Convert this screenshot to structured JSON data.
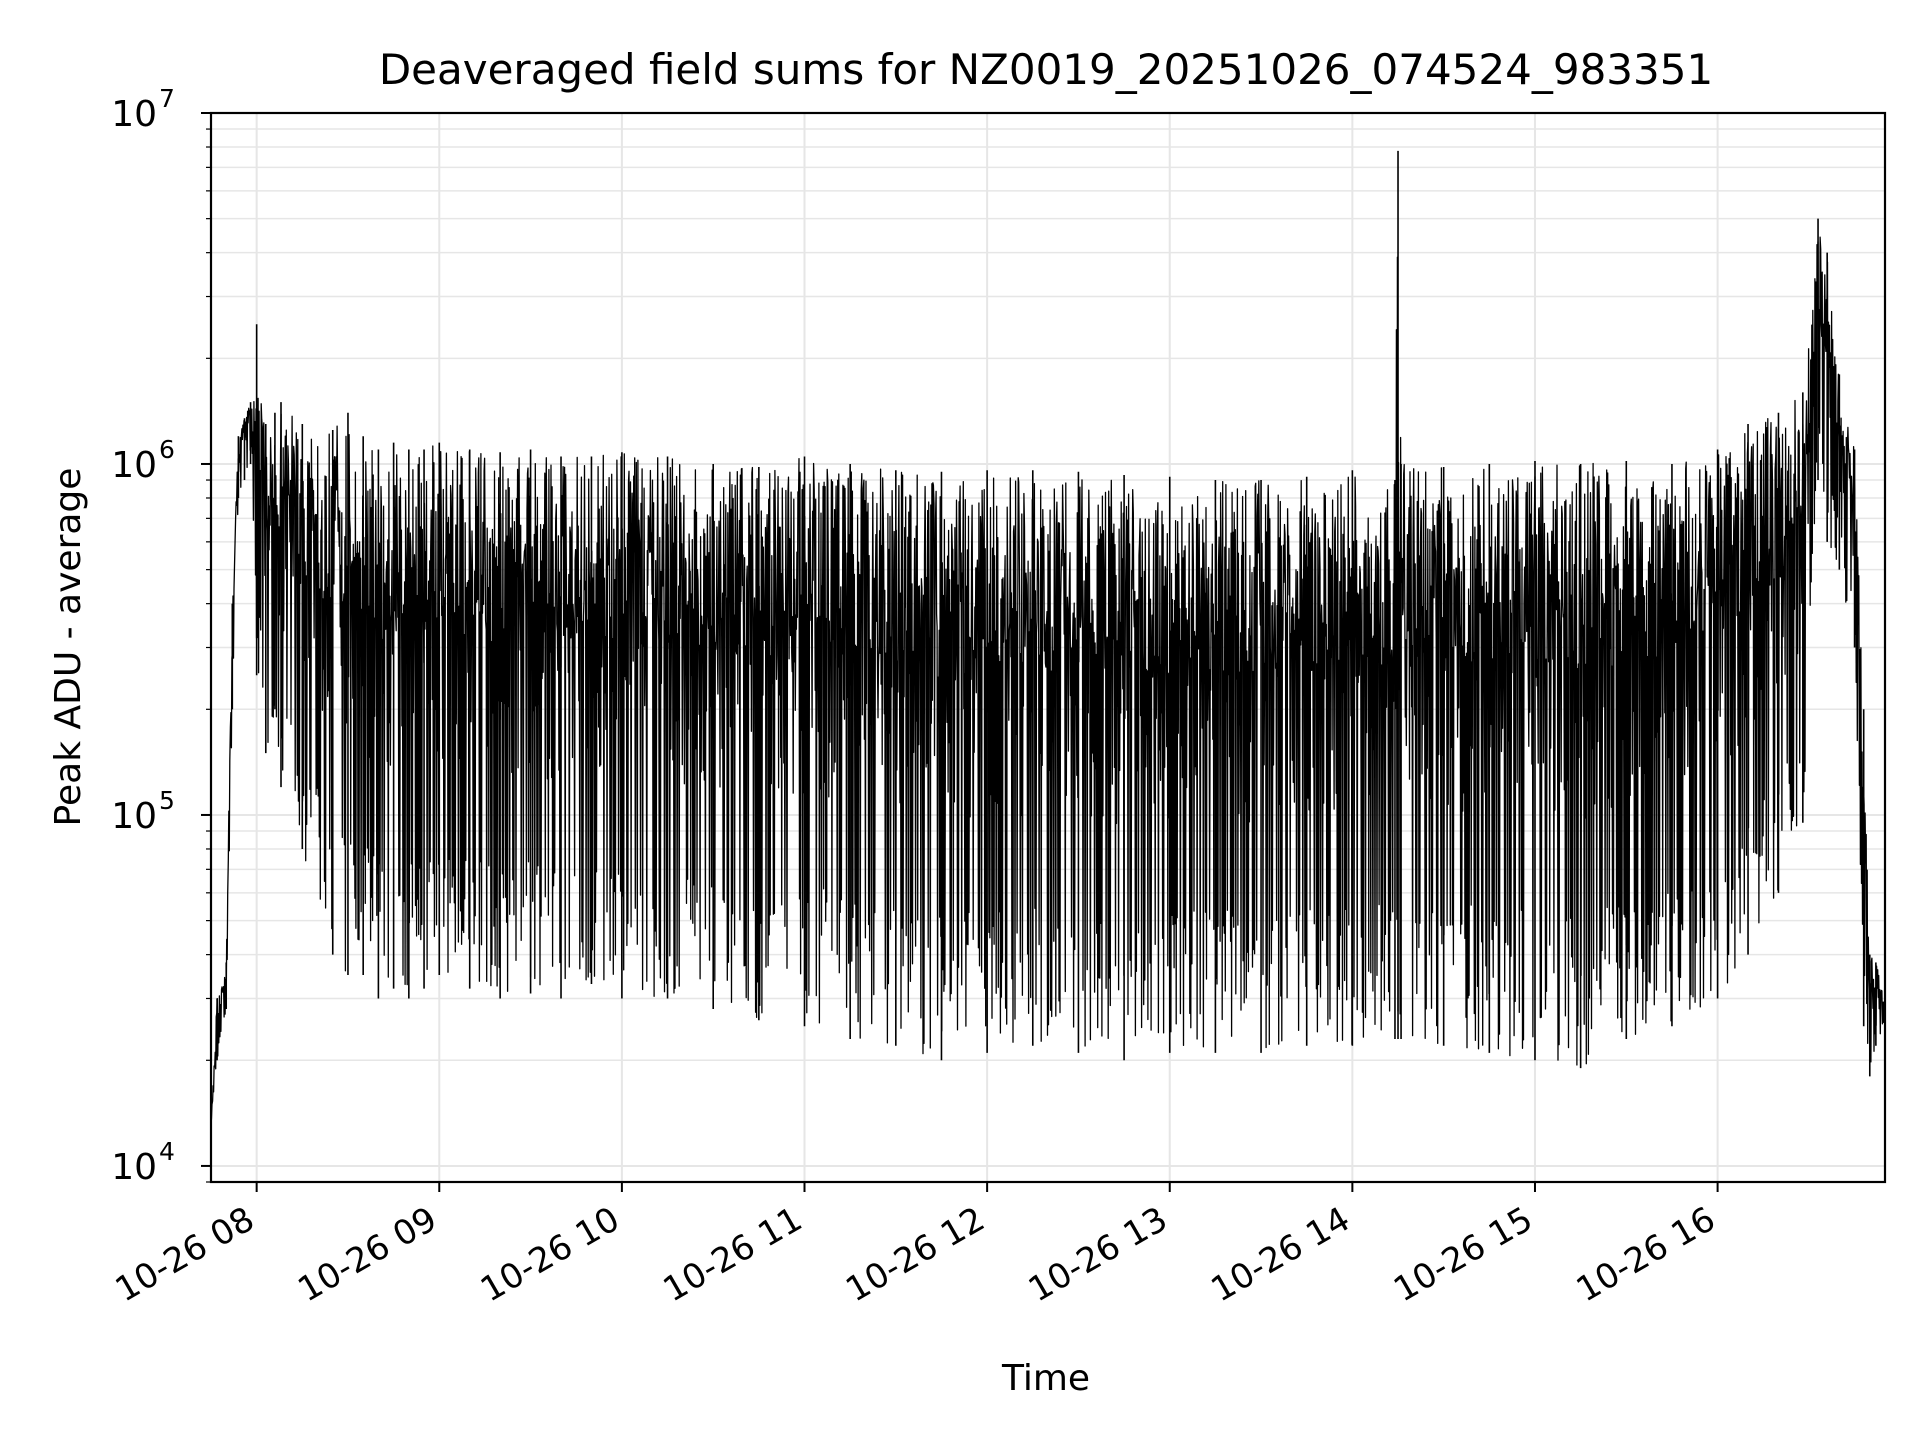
{
  "chart_data": {
    "type": "line",
    "title": "Deaveraged field sums for NZ0019_20251026_074524_983351",
    "xlabel": "Time",
    "ylabel": "Peak ADU - average",
    "yscale": "log",
    "ylim": [
      9000,
      10000000
    ],
    "xlim": [
      "2025-10-26 07:45",
      "2025-10-26 16:55"
    ],
    "grid": true,
    "line_color": "#000000",
    "grid_color": "#e6e6e6",
    "x_ticks": [
      {
        "time": "2025-10-26 08:00",
        "label": "10-26 08"
      },
      {
        "time": "2025-10-26 09:00",
        "label": "10-26 09"
      },
      {
        "time": "2025-10-26 10:00",
        "label": "10-26 10"
      },
      {
        "time": "2025-10-26 11:00",
        "label": "10-26 11"
      },
      {
        "time": "2025-10-26 12:00",
        "label": "10-26 12"
      },
      {
        "time": "2025-10-26 13:00",
        "label": "10-26 13"
      },
      {
        "time": "2025-10-26 14:00",
        "label": "10-26 14"
      },
      {
        "time": "2025-10-26 15:00",
        "label": "10-26 15"
      },
      {
        "time": "2025-10-26 16:00",
        "label": "10-26 16"
      }
    ],
    "y_ticks": [
      {
        "value": 10000,
        "base": "10",
        "exp": "4"
      },
      {
        "value": 100000,
        "base": "10",
        "exp": "5"
      },
      {
        "value": 1000000,
        "base": "10",
        "exp": "6"
      },
      {
        "value": 10000000,
        "base": "10",
        "exp": "7"
      }
    ],
    "series": [
      {
        "x": [
          "2025-10-26 07:45",
          "2025-10-26 07:47",
          "2025-10-26 07:50",
          "2025-10-26 07:52",
          "2025-10-26 07:54",
          "2025-10-26 07:56",
          "2025-10-26 07:58",
          "2025-10-26 08:00",
          "2025-10-26 08:03",
          "2025-10-26 08:06",
          "2025-10-26 08:08",
          "2025-10-26 08:15",
          "2025-10-26 08:25",
          "2025-10-26 08:30",
          "2025-10-26 08:35",
          "2025-10-26 08:40",
          "2025-10-26 08:45",
          "2025-10-26 08:50",
          "2025-10-26 08:55",
          "2025-10-26 09:00",
          "2025-10-26 09:10",
          "2025-10-26 09:20",
          "2025-10-26 09:30",
          "2025-10-26 09:40",
          "2025-10-26 09:50",
          "2025-10-26 10:00",
          "2025-10-26 10:15",
          "2025-10-26 10:30",
          "2025-10-26 10:45",
          "2025-10-26 11:00",
          "2025-10-26 11:15",
          "2025-10-26 11:30",
          "2025-10-26 11:45",
          "2025-10-26 12:00",
          "2025-10-26 12:15",
          "2025-10-26 12:30",
          "2025-10-26 12:45",
          "2025-10-26 13:00",
          "2025-10-26 13:15",
          "2025-10-26 13:30",
          "2025-10-26 13:45",
          "2025-10-26 14:00",
          "2025-10-26 14:14",
          "2025-10-26 14:15",
          "2025-10-26 14:16",
          "2025-10-26 14:30",
          "2025-10-26 14:45",
          "2025-10-26 15:00",
          "2025-10-26 15:15",
          "2025-10-26 15:30",
          "2025-10-26 15:45",
          "2025-10-26 16:00",
          "2025-10-26 16:10",
          "2025-10-26 16:20",
          "2025-10-26 16:28",
          "2025-10-26 16:33",
          "2025-10-26 16:36",
          "2025-10-26 16:40",
          "2025-10-26 16:45",
          "2025-10-26 16:48",
          "2025-10-26 16:50",
          "2025-10-26 16:52",
          "2025-10-26 16:55"
        ],
        "upper": [
          13000,
          30000,
          38000,
          400000,
          1200000,
          1350000,
          1500000,
          2500000,
          1300000,
          1400000,
          1500000,
          1300000,
          1250000,
          1400000,
          1200000,
          1100000,
          1150000,
          1100000,
          1100000,
          1150000,
          1100000,
          1080000,
          1100000,
          1050000,
          1050000,
          1080000,
          1050000,
          1000000,
          980000,
          1050000,
          1000000,
          960000,
          950000,
          960000,
          960000,
          950000,
          930000,
          920000,
          900000,
          900000,
          920000,
          960000,
          900000,
          7800000,
          1000000,
          980000,
          1000000,
          1020000,
          1000000,
          1020000,
          1000000,
          1100000,
          1300000,
          1400000,
          1600000,
          5000000,
          4000000,
          1800000,
          1100000,
          200000,
          40000,
          38000,
          30000
        ],
        "lower": [
          13000,
          20000,
          28000,
          200000,
          800000,
          900000,
          1000000,
          250000,
          150000,
          200000,
          120000,
          80000,
          40000,
          35000,
          35000,
          30000,
          32000,
          30000,
          32000,
          35000,
          32000,
          30000,
          31000,
          30000,
          33000,
          30000,
          30000,
          28000,
          26000,
          25000,
          23000,
          22000,
          20000,
          21000,
          22000,
          21000,
          20000,
          21000,
          21000,
          21000,
          22000,
          22000,
          23000,
          23000,
          23000,
          22000,
          21000,
          20000,
          19000,
          23000,
          25000,
          30000,
          40000,
          60000,
          95000,
          900000,
          600000,
          500000,
          300000,
          25000,
          18000,
          22000,
          25000
        ]
      }
    ]
  }
}
